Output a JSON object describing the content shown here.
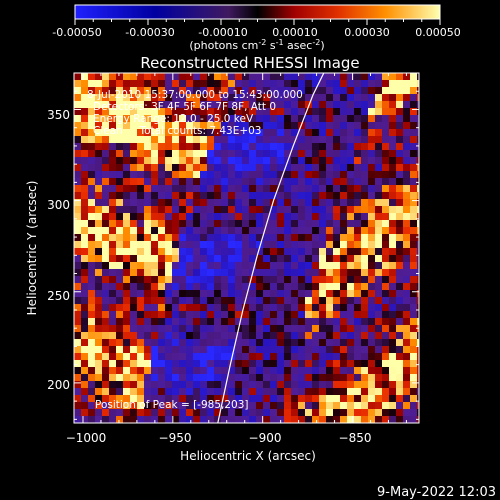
{
  "colorbar": {
    "tick_labels": [
      "-0.00050",
      "-0.00030",
      "-0.00010",
      "0.00010",
      "0.00030",
      "0.00050"
    ],
    "units_line": "(photons cm",
    "units_sup1": "-2",
    "units_mid1": " s",
    "units_sup2": "-1",
    "units_mid2": " asec",
    "units_sup3": "-2",
    "units_end": ")",
    "range": [
      -0.0005,
      0.0005
    ]
  },
  "chart_data": {
    "type": "heatmap",
    "title": "Reconstructed RHESSI Image",
    "xlabel": "Heliocentric X (arcsec)",
    "ylabel": "Heliocentric Y (arcsec)",
    "xlim": [
      -1005,
      -813
    ],
    "ylim": [
      178,
      370
    ],
    "x_ticks": [
      -1000,
      -950,
      -900,
      -850
    ],
    "y_ticks": [
      200,
      250,
      300,
      350
    ],
    "x_tick_labels": [
      "−1000",
      "−950",
      "−900",
      "−850"
    ],
    "y_tick_labels": [
      "200",
      "250",
      "300",
      "350"
    ],
    "limb_curve": [
      {
        "x": -925,
        "y": 178
      },
      {
        "x": -918,
        "y": 210
      },
      {
        "x": -911,
        "y": 240
      },
      {
        "x": -903,
        "y": 270
      },
      {
        "x": -894,
        "y": 300
      },
      {
        "x": -883,
        "y": 330
      },
      {
        "x": -872,
        "y": 358
      },
      {
        "x": -866,
        "y": 370
      }
    ],
    "peak_marker": {
      "x": -985,
      "y": 203
    },
    "annotations": [
      "8-Jul-2010 15:37:00.000 to 15:43:00.000",
      "Detectors: 3F 4F 5F 6F 7F 8F, Att 0",
      "Energy Range: 12.0 - 25.0 keV",
      "Clean     Total counts: 7.43E+03",
      "Position of Peak = [-985,203]"
    ]
  },
  "footer": {
    "date": "9-May-2022 12:03"
  }
}
